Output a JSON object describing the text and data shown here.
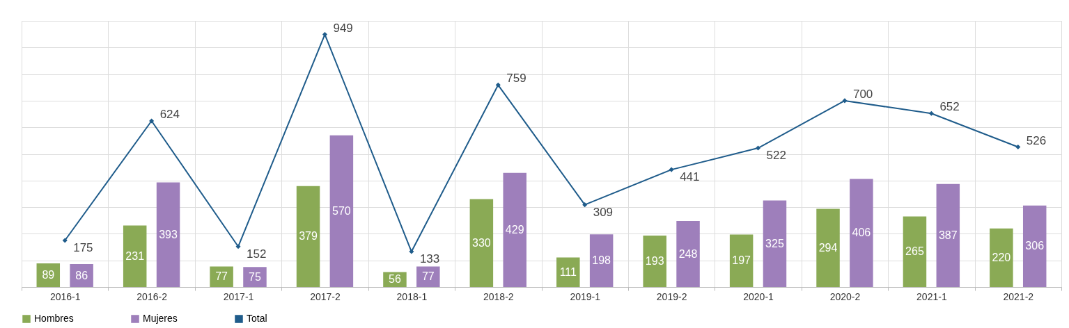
{
  "chart_data": {
    "type": "bar",
    "categories": [
      "2016-1",
      "2016-2",
      "2017-1",
      "2017-2",
      "2018-1",
      "2018-2",
      "2019-1",
      "2019-2",
      "2020-1",
      "2020-2",
      "2021-1",
      "2021-2"
    ],
    "series": [
      {
        "name": "Hombres",
        "color": "#8aaa55",
        "values": [
          89,
          231,
          77,
          379,
          56,
          330,
          111,
          193,
          197,
          294,
          265,
          220
        ]
      },
      {
        "name": "Mujeres",
        "color": "#9e7fbb",
        "values": [
          86,
          393,
          75,
          570,
          77,
          429,
          198,
          248,
          325,
          406,
          387,
          306
        ]
      },
      {
        "name": "Total",
        "type": "line",
        "color": "#1f5c8b",
        "marker": "diamond",
        "values": [
          175,
          624,
          152,
          949,
          133,
          759,
          309,
          441,
          522,
          700,
          652,
          526
        ]
      }
    ],
    "ylim": [
      0,
      1000
    ],
    "tick_labels": "x",
    "grid": true,
    "legend": "bottom",
    "data_labels": true
  }
}
